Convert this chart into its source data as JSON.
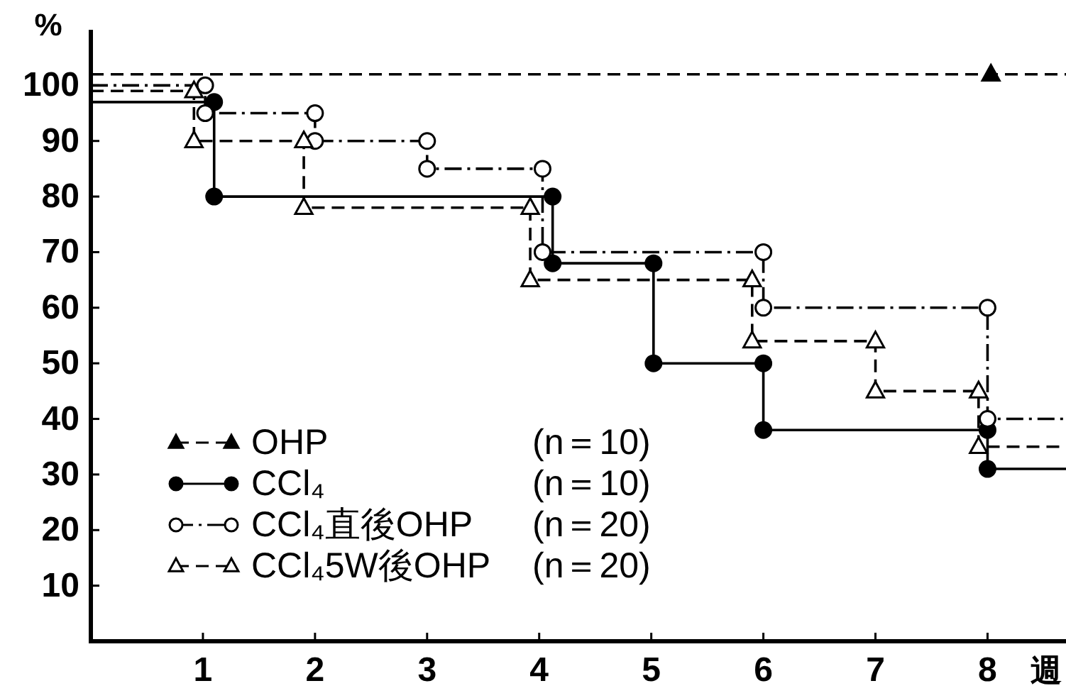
{
  "chart_data": {
    "type": "line",
    "xlabel": "週",
    "ylabel": "%",
    "xlim": [
      0,
      8.7
    ],
    "ylim": [
      0,
      110
    ],
    "xticks": [
      1,
      2,
      3,
      4,
      5,
      6,
      7,
      8
    ],
    "yticks": [
      10,
      20,
      30,
      40,
      50,
      60,
      70,
      80,
      90,
      100
    ],
    "grid": false,
    "legend": "bottom left",
    "ref_lines": [
      {
        "axis": "y",
        "value": 102,
        "color": "#000000",
        "line_style": "dashed"
      }
    ],
    "series": [
      {
        "name": "OHP (n＝10)",
        "type": "scatter",
        "color": "#000000",
        "marker": "triangle",
        "colors": [
          "#000000"
        ],
        "line_style": "dashed",
        "x": [
          8.03
        ],
        "values": [
          102
        ]
      },
      {
        "name": "CCl₄ (n＝10)",
        "color": "#000000",
        "marker": "circle",
        "colors": [
          null,
          "#000000",
          "#000000",
          "#000000",
          "#000000",
          "#000000",
          "#000000",
          "#000000",
          "#000000",
          "#000000",
          "#000000",
          null
        ],
        "line_style": "solid",
        "x": [
          0,
          1.1,
          1.1,
          4.12,
          4.12,
          5.02,
          5.02,
          6,
          6,
          8,
          8,
          8.7
        ],
        "values": [
          97,
          97,
          80,
          80,
          68,
          68,
          50,
          50,
          38,
          38,
          31,
          31
        ]
      },
      {
        "name": "CCl₄直後OHP (n＝20)",
        "color": "#000000",
        "marker": "circle",
        "colors": [
          null,
          "#ffffff",
          "#ffffff",
          "#ffffff",
          "#ffffff",
          "#ffffff",
          "#ffffff",
          "#ffffff",
          "#ffffff",
          "#ffffff",
          "#ffffff",
          "#ffffff",
          "#ffffff",
          null
        ],
        "line_style": "dashdot",
        "x": [
          0,
          1.02,
          1.02,
          2,
          2,
          3,
          3,
          4.03,
          4.03,
          6,
          6,
          8,
          8,
          8.7
        ],
        "values": [
          100,
          100,
          95,
          95,
          90,
          90,
          85,
          85,
          70,
          70,
          60,
          60,
          40,
          40
        ]
      },
      {
        "name": "CCl₄5W後OHP (n＝20)",
        "color": "#000000",
        "marker": "triangle",
        "colors": [
          null,
          "#ffffff",
          "#ffffff",
          "#ffffff",
          "#ffffff",
          "#ffffff",
          "#ffffff",
          "#ffffff",
          "#ffffff",
          "#ffffff",
          "#ffffff",
          "#ffffff",
          "#ffffff",
          null
        ],
        "line_style": "dashed",
        "x": [
          0,
          0.92,
          0.92,
          1.9,
          1.9,
          3.92,
          3.92,
          5.9,
          5.9,
          7,
          7,
          7.92,
          7.92,
          8.7
        ],
        "values": [
          99,
          99,
          90,
          90,
          78,
          78,
          65,
          65,
          54,
          54,
          45,
          45,
          35,
          35
        ]
      }
    ]
  }
}
